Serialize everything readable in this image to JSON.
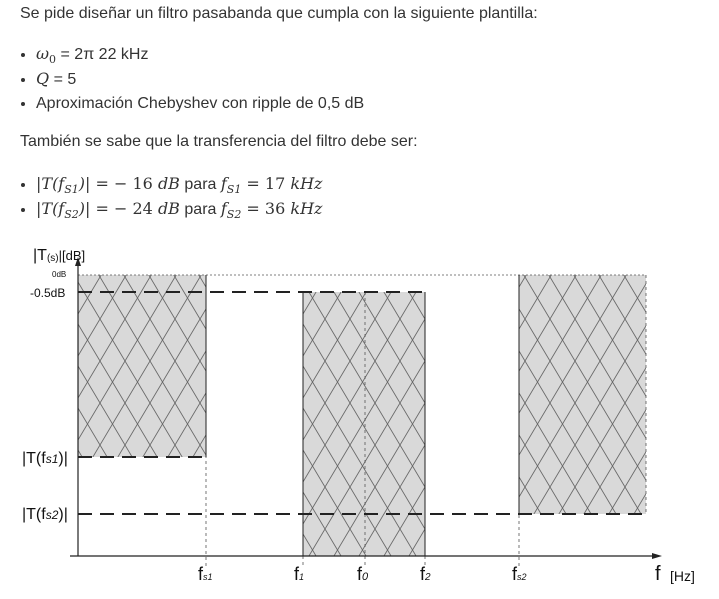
{
  "intro": "Se pide diseñar un filtro pasabanda que cumpla con la siguiente plantilla:",
  "specs": {
    "w0_sym": "ω",
    "w0_sub": "0",
    "w0_val": "= 2π 22 kHz",
    "q_sym": "Q",
    "q_val": "= 5",
    "approx": "Aproximación Chebyshev con ripple de 0,5 dB"
  },
  "transfer_intro": "También se sabe que la transferencia del filtro debe ser:",
  "conditions": [
    {
      "lhs_pre": "|T(f",
      "lhs_sub": "S1",
      "lhs_post": ")|",
      "eq": " = − 16 ",
      "unit": "dB",
      "word": "para",
      "f": "f",
      "f_sub": "S1",
      "rhs": " = 17 ",
      "rhs_unit": "kHz"
    },
    {
      "lhs_pre": "|T(f",
      "lhs_sub": "S2",
      "lhs_post": ")|",
      "eq": " = − 24 ",
      "unit": "dB",
      "word": "para",
      "f": "f",
      "f_sub": "S2",
      "rhs": " = 36 ",
      "rhs_unit": "kHz"
    }
  ],
  "figure": {
    "y_axis_label": "|T",
    "y_axis_label_sub": "(s)",
    "y_axis_label_post": "|[dB]",
    "y_ticks": {
      "zero": "0dB",
      "ripple": "-0.5dB",
      "ts1_pre": "|T(f",
      "ts1_sub": "s1",
      "ts1_post": ")|",
      "ts2_pre": "|T(f",
      "ts2_sub": "s2",
      "ts2_post": ")|"
    },
    "x_ticks": [
      {
        "main": "f",
        "sub": "s1"
      },
      {
        "main": "f",
        "sub": "1"
      },
      {
        "main": "f",
        "sub": "0"
      },
      {
        "main": "f",
        "sub": "2"
      },
      {
        "main": "f",
        "sub": "s2"
      }
    ],
    "x_axis_label": "f",
    "x_axis_unit": "[Hz]",
    "colors": {
      "band_fill": "#d9d9d9",
      "hatch": "#6a6a6a",
      "line": "#222222"
    }
  }
}
